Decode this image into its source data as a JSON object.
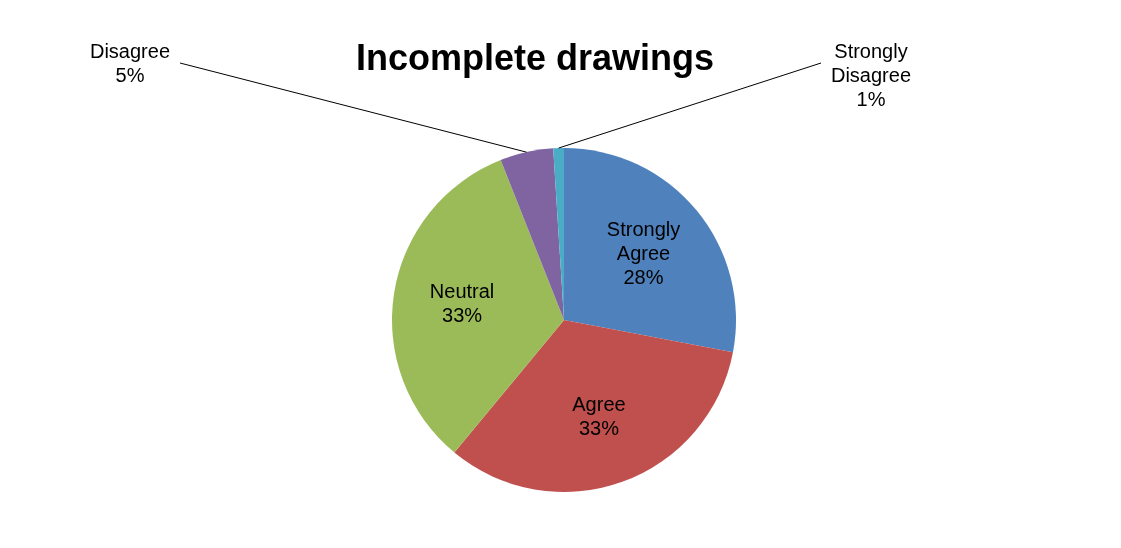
{
  "chart_data": {
    "type": "pie",
    "title": "Incomplete drawings",
    "categories": [
      "Strongly Agree",
      "Agree",
      "Neutral",
      "Disagree",
      "Strongly Disagree"
    ],
    "values": [
      28,
      33,
      33,
      5,
      1
    ],
    "value_labels": [
      "28%",
      "33%",
      "33%",
      "5%",
      "1%"
    ],
    "colors": [
      "#4f81bd",
      "#c0504d",
      "#9bbb59",
      "#8064a2",
      "#4bacc6"
    ],
    "legend": false
  }
}
